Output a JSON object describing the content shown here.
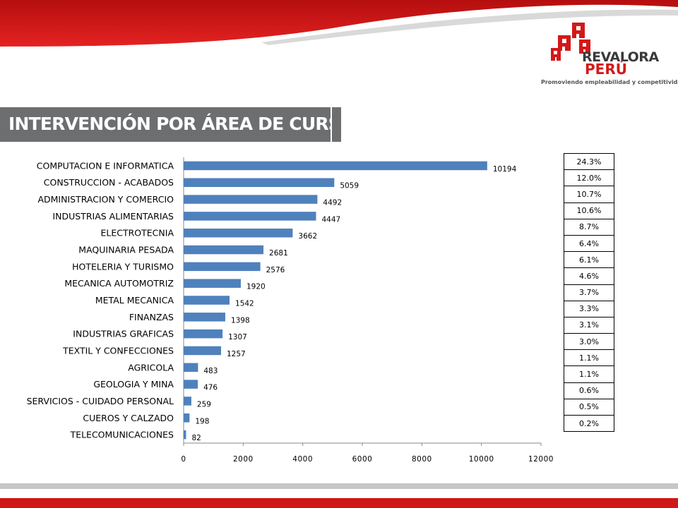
{
  "header": {
    "logo_word1": "REVALORA",
    "logo_word2": "PERÚ",
    "tagline": "Promoviendo empleabilidad y competitividad",
    "brand_red": "#d31919",
    "brand_grey": "#6d6e70"
  },
  "title": "INTERVENCIÓN POR ÁREA DE CURSO",
  "chart_data": {
    "type": "bar",
    "orientation": "horizontal",
    "categories": [
      "COMPUTACION E INFORMATICA",
      "CONSTRUCCION - ACABADOS",
      "ADMINISTRACION Y COMERCIO",
      "INDUSTRIAS ALIMENTARIAS",
      "ELECTROTECNIA",
      "MAQUINARIA PESADA",
      "HOTELERIA Y TURISMO",
      "MECANICA AUTOMOTRIZ",
      "METAL MECANICA",
      "FINANZAS",
      "INDUSTRIAS GRAFICAS",
      "TEXTIL Y CONFECCIONES",
      "AGRICOLA",
      "GEOLOGIA Y MINA",
      "SERVICIOS - CUIDADO PERSONAL",
      "CUEROS Y CALZADO",
      "TELECOMUNICACIONES"
    ],
    "values": [
      10194,
      5059,
      4492,
      4447,
      3662,
      2681,
      2576,
      1920,
      1542,
      1398,
      1307,
      1257,
      483,
      476,
      259,
      198,
      82
    ],
    "percentages": [
      "24.3%",
      "12.0%",
      "10.7%",
      "10.6%",
      "8.7%",
      "6.4%",
      "6.1%",
      "4.6%",
      "3.7%",
      "3.3%",
      "3.1%",
      "3.0%",
      "1.1%",
      "1.1%",
      "0.6%",
      "0.5%",
      "0.2%"
    ],
    "xlim": [
      0,
      12000
    ],
    "x_ticks": [
      0,
      2000,
      4000,
      6000,
      8000,
      10000,
      12000
    ],
    "bar_color": "#4f81bd",
    "grid": false,
    "data_labels": true
  }
}
